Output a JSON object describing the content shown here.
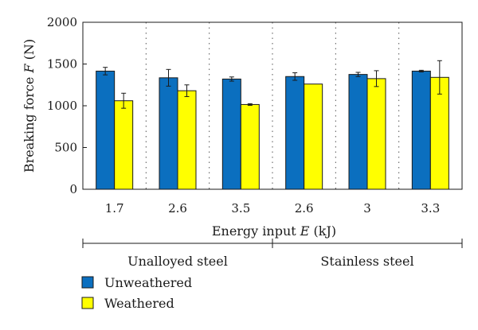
{
  "chart_data": {
    "type": "bar",
    "categories": [
      "1.7",
      "2.6",
      "3.5",
      "2.6",
      "3",
      "3.3"
    ],
    "groups": [
      {
        "label": "Unalloyed steel",
        "categories": [
          "1.7",
          "2.6",
          "3.5"
        ]
      },
      {
        "label": "Stainless steel",
        "categories": [
          "2.6",
          "3",
          "3.3"
        ]
      }
    ],
    "series": [
      {
        "name": "Unweathered",
        "color": "#0b6fbf",
        "values": [
          1415,
          1335,
          1320,
          1350,
          1375,
          1415
        ],
        "errors": [
          45,
          100,
          25,
          45,
          25,
          10
        ]
      },
      {
        "name": "Weathered",
        "color": "#ffff00",
        "values": [
          1060,
          1180,
          1015,
          1260,
          1325,
          1340
        ],
        "errors": [
          90,
          70,
          10,
          0,
          95,
          200
        ]
      }
    ],
    "ylabel_prefix": "Breaking force ",
    "ylabel_var": "F",
    "ylabel_unit": " (N)",
    "xlabel_prefix": "Energy input ",
    "xlabel_var": "E",
    "xlabel_unit": " (kJ)",
    "ylim": [
      0,
      2000
    ],
    "yticks": [
      0,
      500,
      1000,
      1500,
      2000
    ],
    "grid": "vertical dotted between categories",
    "legend_position": "bottom-left"
  }
}
